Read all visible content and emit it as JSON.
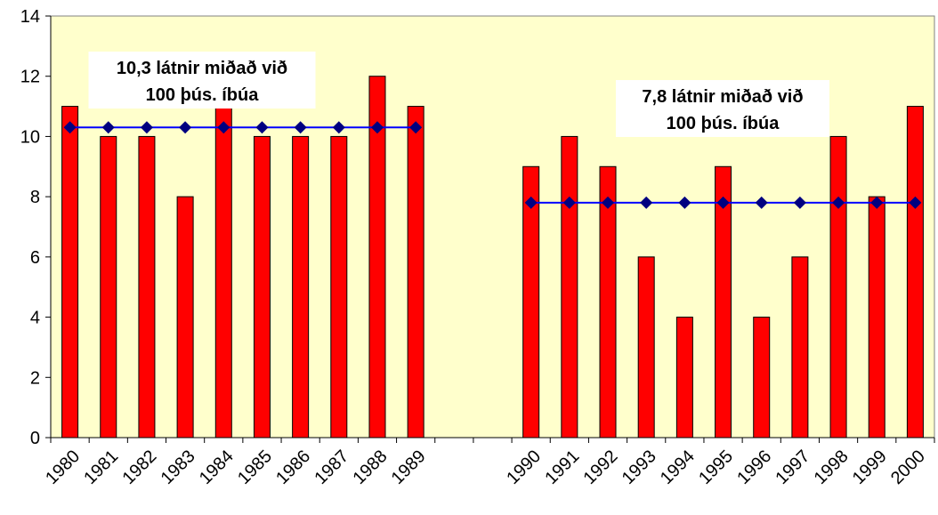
{
  "chart_data": {
    "type": "bar",
    "categories": [
      "1980",
      "1981",
      "1982",
      "1983",
      "1984",
      "1985",
      "1986",
      "1987",
      "1988",
      "1989",
      null,
      null,
      "1990",
      "1991",
      "1992",
      "1993",
      "1994",
      "1995",
      "1996",
      "1997",
      "1998",
      "1999",
      "2000"
    ],
    "series": [
      {
        "type": "bar",
        "color": "#ff0000",
        "values": [
          11,
          10,
          10,
          8,
          11,
          10,
          10,
          10,
          12,
          11,
          null,
          null,
          9,
          10,
          9,
          6,
          4,
          9,
          4,
          6,
          10,
          8,
          11
        ]
      },
      {
        "type": "line",
        "color": "#0000ff",
        "marker_color": "#000080",
        "values": [
          10.3,
          10.3,
          10.3,
          10.3,
          10.3,
          10.3,
          10.3,
          10.3,
          10.3,
          10.3,
          null,
          null,
          7.8,
          7.8,
          7.8,
          7.8,
          7.8,
          7.8,
          7.8,
          7.8,
          7.8,
          7.8,
          7.8
        ]
      }
    ],
    "annotations": [
      {
        "lines": [
          "10,3 látnir miðað við",
          "100 þús. íbúa"
        ]
      },
      {
        "lines": [
          "7,8 látnir miðað við",
          "100 þús. íbúa"
        ]
      }
    ],
    "ylim": [
      0,
      14
    ],
    "yticks": [
      0,
      2,
      4,
      6,
      8,
      10,
      12,
      14
    ],
    "background": "#ffffcc"
  }
}
